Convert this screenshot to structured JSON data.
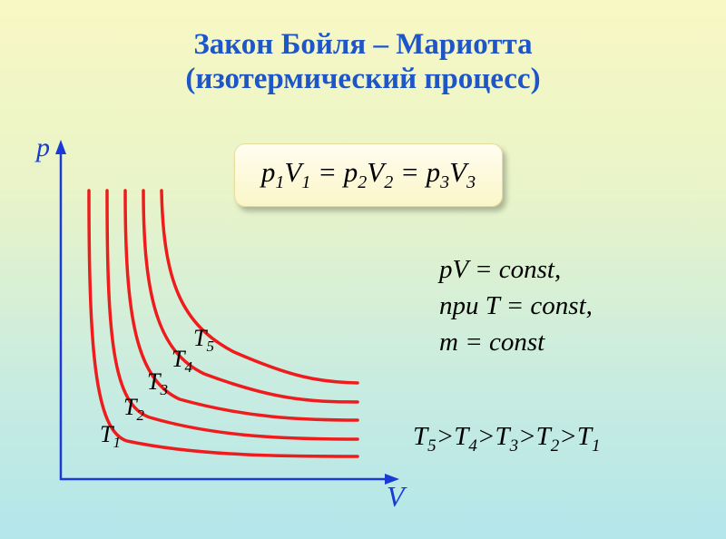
{
  "title": {
    "line1": "Закон Бойля – Мариотта",
    "line2": "(изотермический процесс)"
  },
  "formula": {
    "terms": [
      {
        "base": "p",
        "sub": "1"
      },
      {
        "base": "V",
        "sub": "1"
      },
      {
        "op": " = "
      },
      {
        "base": "p",
        "sub": "2"
      },
      {
        "base": "V",
        "sub": "2"
      },
      {
        "op": " = "
      },
      {
        "base": "p",
        "sub": "3"
      },
      {
        "base": "V",
        "sub": "3"
      }
    ]
  },
  "conditions": [
    "pV = const,",
    "при T = const,",
    "m = const"
  ],
  "order": [
    "T5",
    "T4",
    "T3",
    "T2",
    "T1"
  ],
  "axes": {
    "y_label": "p",
    "x_label": "V"
  },
  "curve_color": "#ee1c1c",
  "axis_color": "#1a3ad6",
  "chart_data": {
    "type": "line",
    "title": "Закон Бойля – Мариотта (изотермический процесс)",
    "xlabel": "V",
    "ylabel": "p",
    "series": [
      {
        "name": "T1",
        "base": "T",
        "sub": "1"
      },
      {
        "name": "T2",
        "base": "T",
        "sub": "2"
      },
      {
        "name": "T3",
        "base": "T",
        "sub": "3"
      },
      {
        "name": "T4",
        "base": "T",
        "sub": "4"
      },
      {
        "name": "T5",
        "base": "T",
        "sub": "5"
      }
    ]
  }
}
